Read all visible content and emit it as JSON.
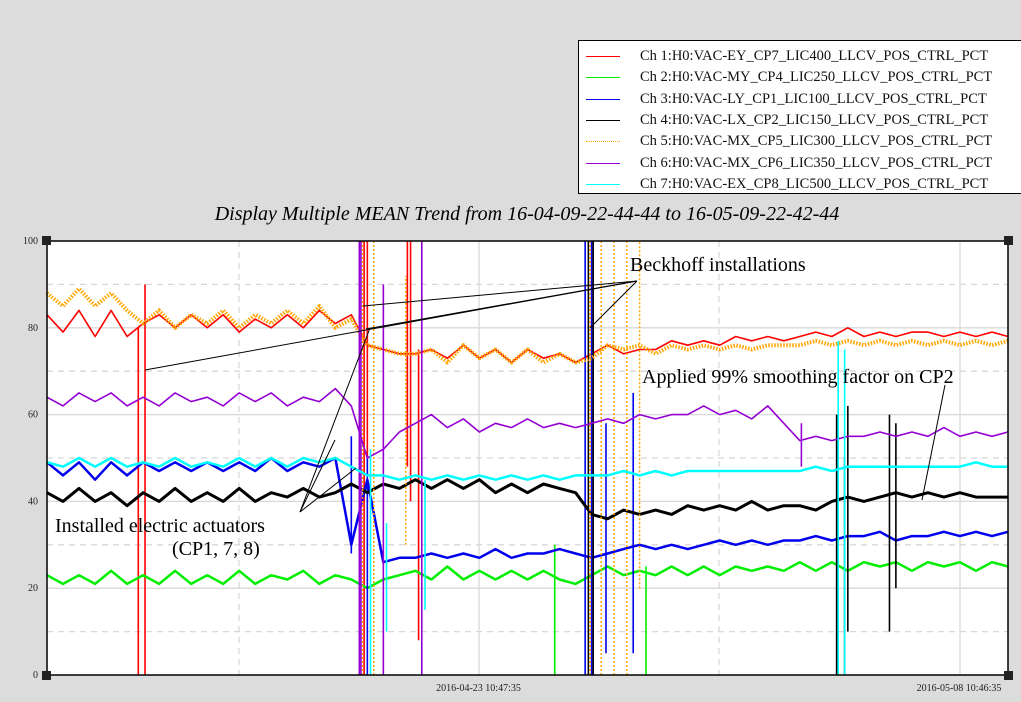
{
  "legend": [
    {
      "label": "Ch 1:H0:VAC-EY_CP7_LIC400_LLCV_POS_CTRL_PCT",
      "color": "#ff0000",
      "style": "solid"
    },
    {
      "label": "Ch 2:H0:VAC-MY_CP4_LIC250_LLCV_POS_CTRL_PCT",
      "color": "#00ee00",
      "style": "solid"
    },
    {
      "label": "Ch 3:H0:VAC-LY_CP1_LIC100_LLCV_POS_CTRL_PCT",
      "color": "#0000ee",
      "style": "solid"
    },
    {
      "label": "Ch 4:H0:VAC-LX_CP2_LIC150_LLCV_POS_CTRL_PCT",
      "color": "#000000",
      "style": "solid"
    },
    {
      "label": "Ch 5:H0:VAC-MX_CP5_LIC300_LLCV_POS_CTRL_PCT",
      "color": "#ffa500",
      "style": "dotted"
    },
    {
      "label": "Ch 6:H0:VAC-MX_CP6_LIC350_LLCV_POS_CTRL_PCT",
      "color": "#9400d3",
      "style": "solid"
    },
    {
      "label": "Ch 7:H0:VAC-EX_CP8_LIC500_LLCV_POS_CTRL_PCT",
      "color": "#00ffff",
      "style": "solid"
    }
  ],
  "annotations": {
    "beckhoff": "Beckhoff installations",
    "actuators_line1": "Installed electric actuators",
    "actuators_line2": "(CP1, 7, 8)",
    "smoothing": "Applied 99% smoothing factor on CP2"
  },
  "chart_data": {
    "type": "line",
    "title": "Display Multiple MEAN Trend from 16-04-09-22-44-44 to 16-05-09-22-42-44",
    "xlabel": "",
    "ylabel": "",
    "x_units": "days since start of plotted range",
    "x_start": 0,
    "x_step": 0.5,
    "xlim": [
      0,
      30
    ],
    "ylim": [
      0,
      100
    ],
    "yticks": [
      0,
      20,
      40,
      60,
      80,
      100
    ],
    "xticks": [
      {
        "value": 13.47,
        "label": "2016-04-23 10:47:35"
      },
      {
        "value": 28.47,
        "label": "2016-05-08 10:46:35"
      }
    ],
    "grid": true,
    "legend_position": "top-right, outside plot",
    "series": [
      {
        "name": "Ch 1",
        "color": "#ff0000",
        "width": 1.6,
        "values": [
          83,
          79,
          84,
          78,
          84,
          78,
          81,
          83,
          80,
          83,
          80,
          83,
          79,
          82,
          80,
          83,
          80,
          84,
          81,
          83,
          76,
          75,
          74,
          74,
          75,
          73,
          76,
          73,
          75,
          72,
          75,
          73,
          74,
          72,
          74,
          76,
          74,
          75,
          75,
          77,
          76,
          77,
          76,
          78,
          77,
          78,
          77,
          78,
          79,
          78,
          80,
          78,
          79,
          78,
          79,
          79,
          78,
          79,
          78,
          79,
          78
        ],
        "spikes": [
          [
            2.85,
            0,
            80
          ],
          [
            3.06,
            0,
            90
          ],
          [
            9.9,
            0,
            100
          ],
          [
            10.0,
            50,
            100
          ],
          [
            11.25,
            48,
            100
          ],
          [
            11.35,
            40,
            100
          ],
          [
            11.6,
            8,
            75
          ]
        ]
      },
      {
        "name": "Ch 2",
        "color": "#00ee00",
        "width": 2.5,
        "values": [
          23,
          21,
          23,
          21,
          24,
          21,
          23,
          21,
          24,
          21,
          23,
          21,
          24,
          21,
          23,
          22,
          24,
          21,
          23,
          22,
          20,
          22,
          23,
          24,
          22,
          25,
          22,
          24,
          22,
          24,
          22,
          24,
          22,
          21,
          23,
          25,
          23,
          24,
          23,
          25,
          23,
          25,
          23,
          25,
          24,
          25,
          24,
          26,
          24,
          26,
          24,
          26,
          25,
          26,
          24,
          26,
          25,
          26,
          24,
          26,
          25
        ],
        "spikes": [
          [
            15.85,
            0,
            30
          ],
          [
            18.7,
            0,
            25
          ]
        ]
      },
      {
        "name": "Ch 3",
        "color": "#0000ee",
        "width": 2.5,
        "values": [
          49,
          46,
          49,
          45,
          49,
          46,
          49,
          47,
          49,
          47,
          49,
          47,
          49,
          47,
          50,
          47,
          49,
          48,
          50,
          30,
          45,
          26,
          27,
          27,
          28,
          27,
          28,
          27,
          29,
          27,
          28,
          28,
          29,
          28,
          27,
          28,
          29,
          30,
          29,
          30,
          29,
          30,
          31,
          30,
          31,
          30,
          31,
          31,
          32,
          31,
          32,
          32,
          33,
          31,
          32,
          32,
          33,
          32,
          33,
          32,
          33
        ],
        "spikes": [
          [
            9.5,
            28,
            55
          ],
          [
            10.0,
            0,
            50
          ],
          [
            16.8,
            0,
            100
          ],
          [
            17.0,
            0,
            100
          ],
          [
            17.45,
            5,
            58
          ],
          [
            18.3,
            5,
            65
          ]
        ]
      },
      {
        "name": "Ch 4",
        "color": "#000000",
        "width": 3,
        "values": [
          42,
          40,
          43,
          40,
          42,
          39,
          42,
          40,
          43,
          40,
          42,
          40,
          43,
          40,
          42,
          41,
          43,
          41,
          42,
          44,
          42,
          44,
          43,
          45,
          43,
          45,
          43,
          45,
          42,
          44,
          42,
          44,
          43,
          42,
          37,
          36,
          38,
          37,
          38,
          37,
          39,
          38,
          39,
          38,
          40,
          38,
          39,
          39,
          38,
          40,
          41,
          40,
          41,
          42,
          41,
          42,
          41,
          42,
          41,
          41,
          41
        ],
        "spikes": [
          [
            16.9,
            0,
            100
          ],
          [
            17.05,
            0,
            100
          ],
          [
            24.65,
            0,
            60
          ],
          [
            24.9,
            0,
            50
          ],
          [
            25.0,
            10,
            62
          ],
          [
            26.3,
            10,
            60
          ],
          [
            26.5,
            20,
            58
          ]
        ]
      },
      {
        "name": "Ch 5",
        "color": "#ffa500",
        "width": 4,
        "dotted": true,
        "values": [
          88,
          85,
          89,
          85,
          88,
          84,
          81,
          84,
          80,
          83,
          81,
          84,
          80,
          83,
          81,
          84,
          81,
          85,
          80,
          82,
          76,
          75,
          74,
          74,
          75,
          72,
          76,
          73,
          75,
          72,
          75,
          72,
          74,
          72,
          73,
          76,
          75,
          76,
          74,
          76,
          75,
          76,
          75,
          76,
          75,
          76,
          76,
          76,
          77,
          76,
          77,
          76,
          77,
          76,
          77,
          76,
          77,
          76,
          77,
          76,
          77
        ],
        "spikes": [
          [
            9.85,
            0,
            100
          ],
          [
            10.2,
            0,
            100
          ],
          [
            11.2,
            30,
            92
          ],
          [
            16.95,
            0,
            100
          ],
          [
            17.3,
            0,
            100
          ],
          [
            17.7,
            0,
            100
          ],
          [
            18.1,
            0,
            100
          ],
          [
            18.5,
            20,
            100
          ]
        ]
      },
      {
        "name": "Ch 6",
        "color": "#9400d3",
        "width": 1.6,
        "values": [
          64,
          62,
          65,
          63,
          65,
          62,
          64,
          62,
          65,
          63,
          64,
          62,
          65,
          63,
          65,
          62,
          64,
          63,
          66,
          62,
          50,
          52,
          56,
          58,
          60,
          57,
          59,
          56,
          58,
          57,
          59,
          57,
          58,
          57,
          58,
          59,
          58,
          60,
          59,
          60,
          60,
          62,
          60,
          61,
          59,
          62,
          58,
          54,
          55,
          54,
          55,
          55,
          56,
          55,
          56,
          55,
          57,
          55,
          56,
          55,
          56
        ],
        "spikes": [
          [
            9.75,
            0,
            100
          ],
          [
            9.8,
            0,
            100
          ],
          [
            10.5,
            0,
            90
          ],
          [
            11.7,
            0,
            100
          ],
          [
            23.55,
            48,
            58
          ]
        ]
      },
      {
        "name": "Ch 7",
        "color": "#00ffff",
        "width": 2.5,
        "values": [
          49,
          48,
          50,
          48,
          50,
          48,
          49,
          48,
          50,
          48,
          49,
          48,
          50,
          48,
          50,
          48,
          50,
          49,
          50,
          48,
          46,
          46,
          45,
          46,
          45,
          46,
          45,
          46,
          45,
          46,
          45,
          46,
          45,
          46,
          46,
          46,
          47,
          46,
          47,
          46,
          47,
          47,
          47,
          47,
          47,
          47,
          47,
          47,
          48,
          47,
          48,
          48,
          48,
          48,
          48,
          48,
          48,
          48,
          49,
          48,
          48
        ],
        "spikes": [
          [
            10.1,
            0,
            52
          ],
          [
            10.6,
            10,
            35
          ],
          [
            11.8,
            15,
            45
          ],
          [
            24.7,
            0,
            77
          ],
          [
            24.9,
            0,
            75
          ]
        ]
      }
    ]
  }
}
